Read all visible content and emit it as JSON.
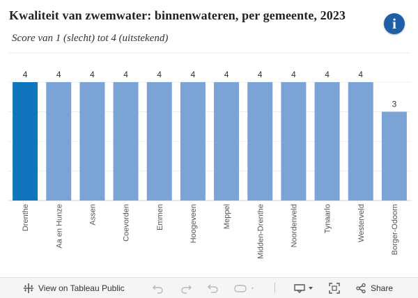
{
  "header": {
    "title": "Kwaliteit van zwemwater: binnenwateren, per gemeente, 2023",
    "subtitle": "Score van 1 (slecht) tot 4 (uitstekend)",
    "info_glyph": "i"
  },
  "chart_data": {
    "type": "bar",
    "title": "Kwaliteit van zwemwater: binnenwateren, per gemeente, 2023",
    "subtitle": "Score van 1 (slecht) tot 4 (uitstekend)",
    "xlabel": "",
    "ylabel": "",
    "categories": [
      "Drenthe",
      "Aa en Hunze",
      "Assen",
      "Coevorden",
      "Emmen",
      "Hoogeveen",
      "Meppel",
      "Midden-Drenthe",
      "Noordenveld",
      "Tynaarlo",
      "Westerveld",
      "Borger-Odoorn"
    ],
    "values": [
      4,
      4,
      4,
      4,
      4,
      4,
      4,
      4,
      4,
      4,
      4,
      3
    ],
    "ylim": [
      0,
      4
    ],
    "grid": true,
    "colors": {
      "highlight": "#0f75bc",
      "default": "#7ba3d6"
    }
  },
  "toolbar": {
    "view_label": "View on Tableau Public",
    "share_label": "Share"
  },
  "icons": [
    "tableau-icon",
    "undo-icon",
    "redo-icon",
    "revert-icon",
    "refresh-icon",
    "download-icon",
    "fullscreen-icon",
    "share-icon"
  ]
}
